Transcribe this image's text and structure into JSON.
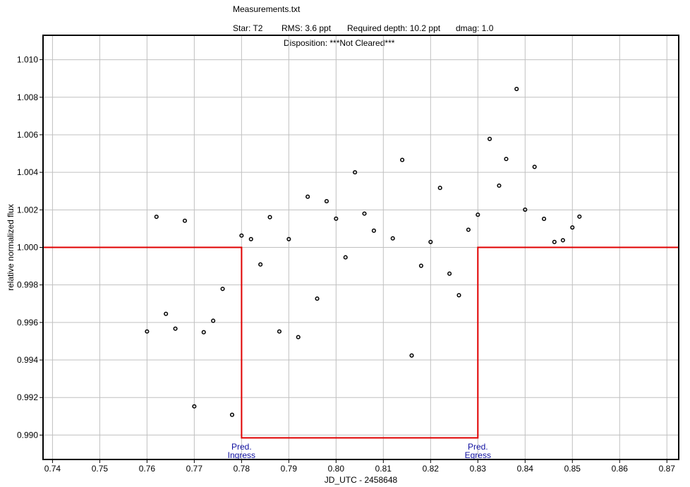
{
  "header": {
    "filename": "Measurements.txt",
    "star": "Star: T2",
    "rms": "RMS: 3.6 ppt",
    "required_depth": "Required depth: 10.2 ppt",
    "dmag": "dmag: 1.0",
    "disposition": "Disposition: ***Not Cleared***"
  },
  "colors": {
    "model": "#e00000",
    "annotation": "#1010a0",
    "grid": "#c0c0c0",
    "points": "#000000"
  },
  "chart_data": {
    "type": "scatter",
    "title": "Measurements.txt",
    "xlabel": "JD_UTC - 2458648",
    "ylabel": "relative normalized flux",
    "xlim": [
      0.738,
      0.8725
    ],
    "ylim": [
      0.9887,
      1.0113
    ],
    "x_ticks": [
      "0.74",
      "0.75",
      "0.76",
      "0.77",
      "0.78",
      "0.79",
      "0.80",
      "0.81",
      "0.82",
      "0.83",
      "0.84",
      "0.85",
      "0.86",
      "0.87"
    ],
    "y_ticks": [
      "0.990",
      "0.992",
      "0.994",
      "0.996",
      "0.998",
      "1.000",
      "1.002",
      "1.004",
      "1.006",
      "1.008",
      "1.010"
    ],
    "grid": true,
    "points": [
      {
        "x": 0.76,
        "y": 0.99552
      },
      {
        "x": 0.762,
        "y": 1.00163
      },
      {
        "x": 0.764,
        "y": 0.99646
      },
      {
        "x": 0.766,
        "y": 0.99567
      },
      {
        "x": 0.768,
        "y": 1.00142
      },
      {
        "x": 0.77,
        "y": 0.99153
      },
      {
        "x": 0.772,
        "y": 0.99548
      },
      {
        "x": 0.774,
        "y": 0.99609
      },
      {
        "x": 0.776,
        "y": 0.99779
      },
      {
        "x": 0.778,
        "y": 0.99108
      },
      {
        "x": 0.78,
        "y": 1.00063
      },
      {
        "x": 0.782,
        "y": 1.00044
      },
      {
        "x": 0.784,
        "y": 0.99909
      },
      {
        "x": 0.786,
        "y": 1.00161
      },
      {
        "x": 0.788,
        "y": 0.99552
      },
      {
        "x": 0.79,
        "y": 1.00044
      },
      {
        "x": 0.792,
        "y": 0.99522
      },
      {
        "x": 0.794,
        "y": 1.0027
      },
      {
        "x": 0.796,
        "y": 0.99727
      },
      {
        "x": 0.798,
        "y": 1.00246
      },
      {
        "x": 0.8,
        "y": 1.00153
      },
      {
        "x": 0.802,
        "y": 0.99947
      },
      {
        "x": 0.804,
        "y": 1.004
      },
      {
        "x": 0.806,
        "y": 1.0018
      },
      {
        "x": 0.808,
        "y": 1.00089
      },
      {
        "x": 0.812,
        "y": 1.00048
      },
      {
        "x": 0.814,
        "y": 1.00466
      },
      {
        "x": 0.816,
        "y": 0.99424
      },
      {
        "x": 0.818,
        "y": 0.99902
      },
      {
        "x": 0.82,
        "y": 1.00029
      },
      {
        "x": 0.822,
        "y": 1.00317
      },
      {
        "x": 0.824,
        "y": 0.9986
      },
      {
        "x": 0.826,
        "y": 0.99745
      },
      {
        "x": 0.828,
        "y": 1.00094
      },
      {
        "x": 0.83,
        "y": 1.00174
      },
      {
        "x": 0.8325,
        "y": 1.00578
      },
      {
        "x": 0.8345,
        "y": 1.00329
      },
      {
        "x": 0.836,
        "y": 1.00471
      },
      {
        "x": 0.8382,
        "y": 1.00844
      },
      {
        "x": 0.84,
        "y": 1.00201
      },
      {
        "x": 0.842,
        "y": 1.00429
      },
      {
        "x": 0.844,
        "y": 1.00152
      },
      {
        "x": 0.8462,
        "y": 1.00029
      },
      {
        "x": 0.848,
        "y": 1.00038
      },
      {
        "x": 0.85,
        "y": 1.00106
      },
      {
        "x": 0.8515,
        "y": 1.00164
      }
    ],
    "model": {
      "x": [
        0.738,
        0.78,
        0.78,
        0.83,
        0.83,
        0.8725
      ],
      "y": [
        1.0,
        1.0,
        0.98985,
        0.98985,
        1.0,
        1.0
      ]
    },
    "annotations": [
      {
        "x": 0.78,
        "line1": "Pred.",
        "line2": "Ingress"
      },
      {
        "x": 0.83,
        "line1": "Pred.",
        "line2": "Egress"
      }
    ]
  }
}
